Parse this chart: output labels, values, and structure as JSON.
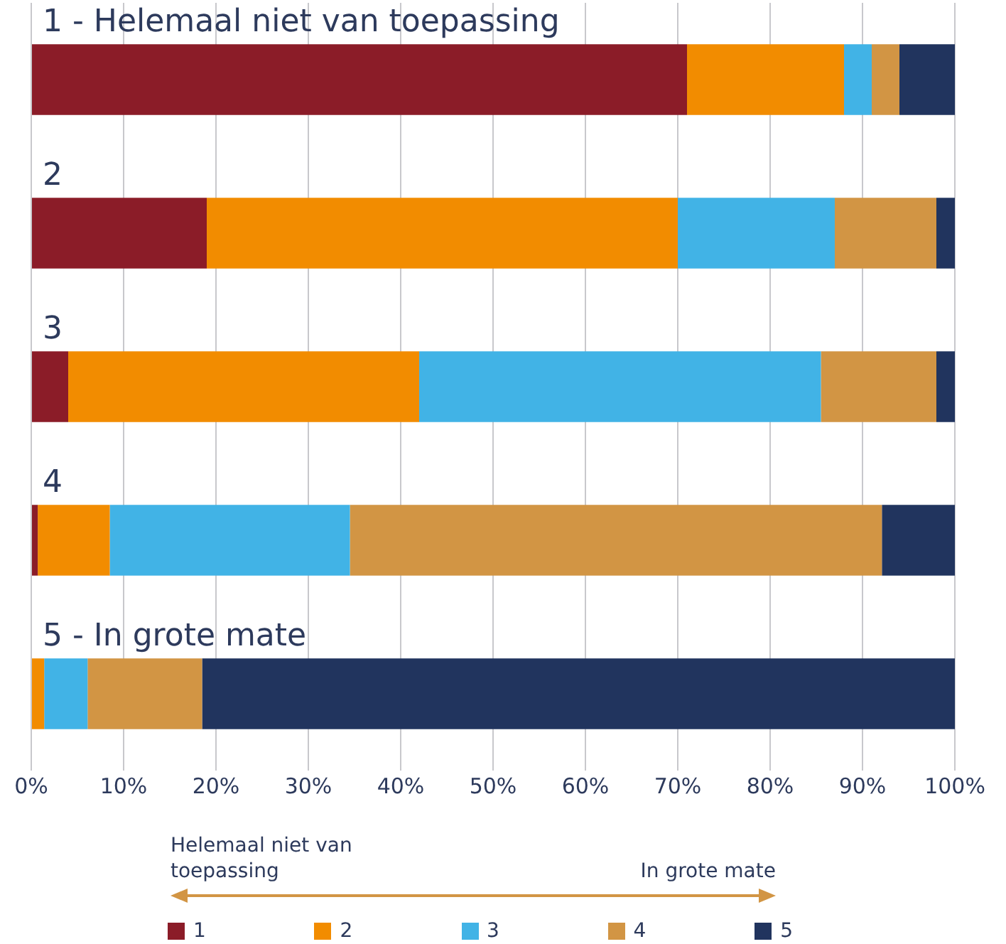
{
  "chart_data": {
    "type": "bar",
    "orientation": "horizontal",
    "stacked": true,
    "categories": [
      "1 - Helemaal niet van toepassing",
      "2",
      "3",
      "4",
      "5 - In grote mate"
    ],
    "series": [
      {
        "name": "1",
        "color": "#8b1c28",
        "values": [
          71,
          19,
          4,
          0.7,
          0
        ]
      },
      {
        "name": "2",
        "color": "#f28c00",
        "values": [
          17,
          51,
          38,
          7.8,
          1.4
        ]
      },
      {
        "name": "3",
        "color": "#41b3e6",
        "values": [
          3,
          17,
          43.5,
          26,
          4.7
        ]
      },
      {
        "name": "4",
        "color": "#d29544",
        "values": [
          3,
          11,
          12.5,
          57.6,
          12.4
        ]
      },
      {
        "name": "5",
        "color": "#21345e",
        "values": [
          6,
          2,
          2,
          7.9,
          81.5
        ]
      }
    ],
    "xlim": [
      0,
      100
    ],
    "xticks": [
      {
        "value": 0,
        "label": "0%"
      },
      {
        "value": 10,
        "label": "10%"
      },
      {
        "value": 20,
        "label": "20%"
      },
      {
        "value": 30,
        "label": "30%"
      },
      {
        "value": 40,
        "label": "40%"
      },
      {
        "value": 50,
        "label": "50%"
      },
      {
        "value": 60,
        "label": "60%"
      },
      {
        "value": 70,
        "label": "70%"
      },
      {
        "value": 80,
        "label": "80%"
      },
      {
        "value": 90,
        "label": "90%"
      },
      {
        "value": 100,
        "label": "100%"
      }
    ],
    "grid": "x",
    "legend": "bottom",
    "annotations": [
      "Helemaal niet van toepassing",
      "In grote mate"
    ]
  }
}
